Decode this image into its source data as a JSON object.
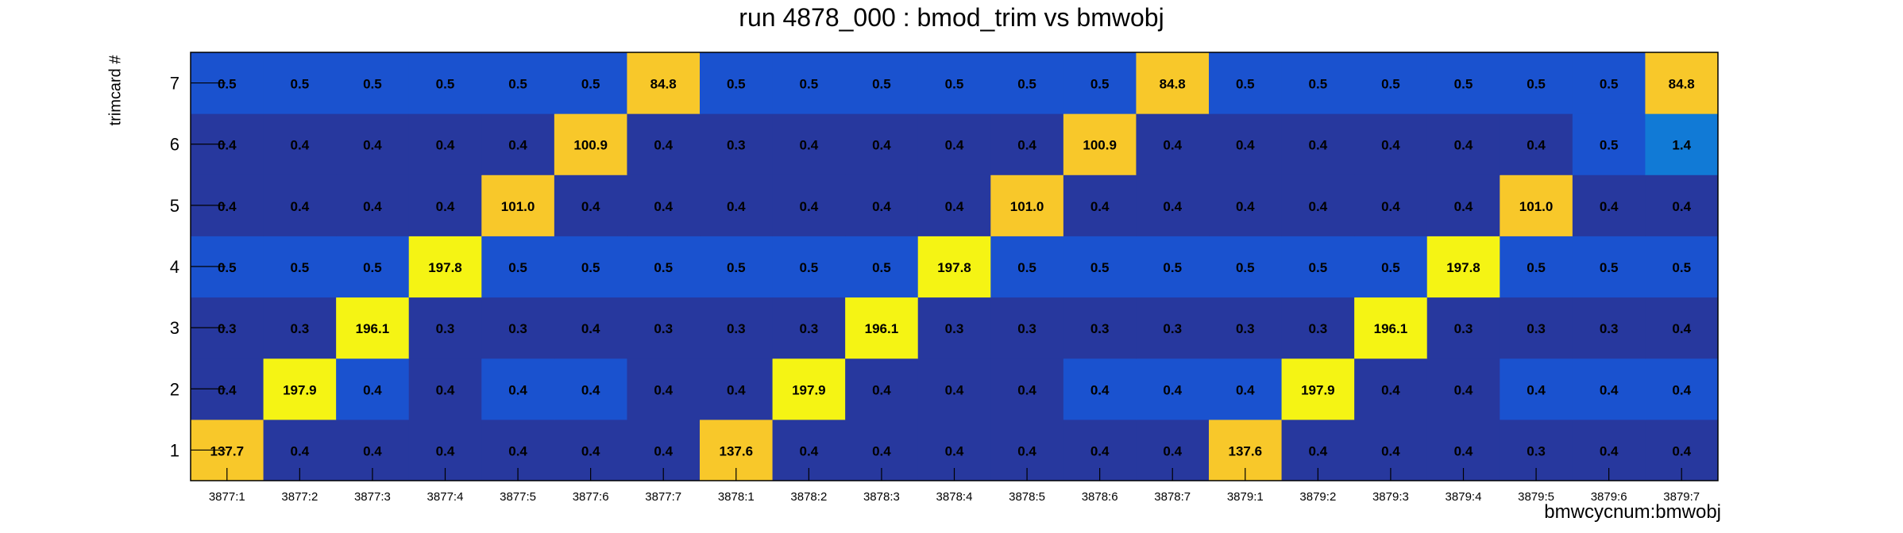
{
  "chart_data": {
    "type": "heatmap",
    "title": "run 4878_000 : bmod_trim vs bmwobj",
    "xlabel": "bmwcycnum:bmwobj",
    "ylabel": "trimcard #",
    "x_categories": [
      "3877:1",
      "3877:2",
      "3877:3",
      "3877:4",
      "3877:5",
      "3877:6",
      "3877:7",
      "3878:1",
      "3878:2",
      "3878:3",
      "3878:4",
      "3878:5",
      "3878:6",
      "3878:7",
      "3879:1",
      "3879:2",
      "3879:3",
      "3879:4",
      "3879:5",
      "3879:6",
      "3879:7"
    ],
    "y_categories": [
      "1",
      "2",
      "3",
      "4",
      "5",
      "6",
      "7"
    ],
    "grid": false,
    "colors": {
      "low": "#27389e",
      "low_mid": "#1a52cf",
      "mid": "#117ad6",
      "high": "#f8c82a",
      "max": "#f5f414",
      "label": "#000000",
      "background": "#ffffff"
    },
    "z": [
      [
        "137.7",
        "0.4",
        "0.4",
        "0.4",
        "0.4",
        "0.4",
        "0.4",
        "137.6",
        "0.4",
        "0.4",
        "0.4",
        "0.4",
        "0.4",
        "0.4",
        "137.6",
        "0.4",
        "0.4",
        "0.4",
        "0.3",
        "0.4",
        "0.4"
      ],
      [
        "0.4",
        "197.9",
        "0.4",
        "0.4",
        "0.4",
        "0.4",
        "0.4",
        "0.4",
        "197.9",
        "0.4",
        "0.4",
        "0.4",
        "0.4",
        "0.4",
        "0.4",
        "197.9",
        "0.4",
        "0.4",
        "0.4",
        "0.4",
        "0.4"
      ],
      [
        "0.3",
        "0.3",
        "196.1",
        "0.3",
        "0.3",
        "0.4",
        "0.3",
        "0.3",
        "0.3",
        "196.1",
        "0.3",
        "0.3",
        "0.3",
        "0.3",
        "0.3",
        "0.3",
        "196.1",
        "0.3",
        "0.3",
        "0.3",
        "0.4"
      ],
      [
        "0.5",
        "0.5",
        "0.5",
        "197.8",
        "0.5",
        "0.5",
        "0.5",
        "0.5",
        "0.5",
        "0.5",
        "197.8",
        "0.5",
        "0.5",
        "0.5",
        "0.5",
        "0.5",
        "0.5",
        "197.8",
        "0.5",
        "0.5",
        "0.5"
      ],
      [
        "0.4",
        "0.4",
        "0.4",
        "0.4",
        "101.0",
        "0.4",
        "0.4",
        "0.4",
        "0.4",
        "0.4",
        "0.4",
        "101.0",
        "0.4",
        "0.4",
        "0.4",
        "0.4",
        "0.4",
        "0.4",
        "101.0",
        "0.4",
        "0.4"
      ],
      [
        "0.4",
        "0.4",
        "0.4",
        "0.4",
        "0.4",
        "100.9",
        "0.4",
        "0.3",
        "0.4",
        "0.4",
        "0.4",
        "0.4",
        "100.9",
        "0.4",
        "0.4",
        "0.4",
        "0.4",
        "0.4",
        "0.4",
        "0.5",
        "1.4"
      ],
      [
        "0.5",
        "0.5",
        "0.5",
        "0.5",
        "0.5",
        "0.5",
        "84.8",
        "0.5",
        "0.5",
        "0.5",
        "0.5",
        "0.5",
        "0.5",
        "84.8",
        "0.5",
        "0.5",
        "0.5",
        "0.5",
        "0.5",
        "0.5",
        "84.8"
      ]
    ]
  }
}
